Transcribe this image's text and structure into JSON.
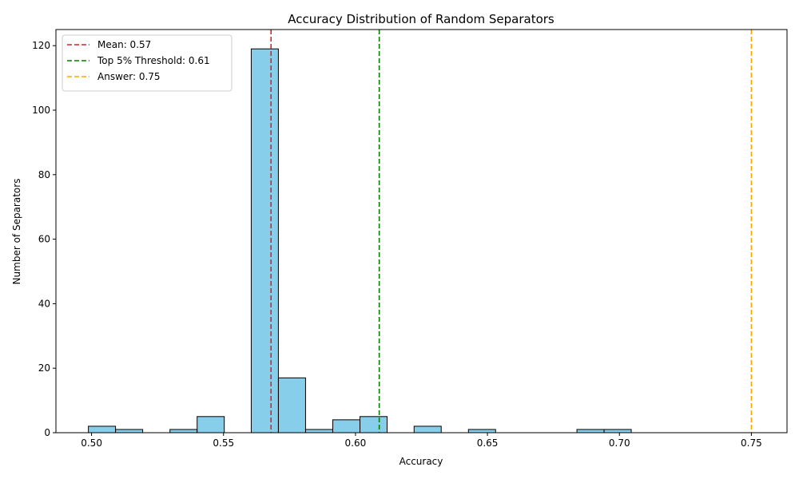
{
  "chart_data": {
    "type": "bar",
    "title": "Accuracy Distribution of Random Separators",
    "xlabel": "Accuracy",
    "ylabel": "Number of Separators",
    "xlim": [
      0.4865,
      0.7635
    ],
    "ylim": [
      0,
      125
    ],
    "x_ticks": [
      0.5,
      0.55,
      0.6,
      0.65,
      0.7,
      0.75
    ],
    "x_tick_labels": [
      "0.50",
      "0.55",
      "0.60",
      "0.65",
      "0.70",
      "0.75"
    ],
    "y_ticks": [
      0,
      20,
      40,
      60,
      80,
      100,
      120
    ],
    "y_tick_labels": [
      "0",
      "20",
      "40",
      "60",
      "80",
      "100",
      "120"
    ],
    "bin_width": 0.01028,
    "bars": [
      {
        "x_start": 0.4988,
        "count": 2
      },
      {
        "x_start": 0.5091,
        "count": 1
      },
      {
        "x_start": 0.5297,
        "count": 1
      },
      {
        "x_start": 0.54,
        "count": 5
      },
      {
        "x_start": 0.5605,
        "count": 119
      },
      {
        "x_start": 0.5708,
        "count": 17
      },
      {
        "x_start": 0.5811,
        "count": 1
      },
      {
        "x_start": 0.5914,
        "count": 4
      },
      {
        "x_start": 0.6017,
        "count": 5
      },
      {
        "x_start": 0.6222,
        "count": 2
      },
      {
        "x_start": 0.6428,
        "count": 1
      },
      {
        "x_start": 0.6839,
        "count": 1
      },
      {
        "x_start": 0.6942,
        "count": 1
      }
    ],
    "bar_color": "#87ceeb",
    "bar_edge_color": "#000000",
    "reference_lines": [
      {
        "label": "Mean: 0.57",
        "x": 0.568,
        "color": "#d62728"
      },
      {
        "label": "Top 5% Threshold: 0.61",
        "x": 0.609,
        "color": "#008000"
      },
      {
        "label": "Answer: 0.75",
        "x": 0.75,
        "color": "#ffa500"
      }
    ],
    "legend": "top-left",
    "grid": false
  }
}
